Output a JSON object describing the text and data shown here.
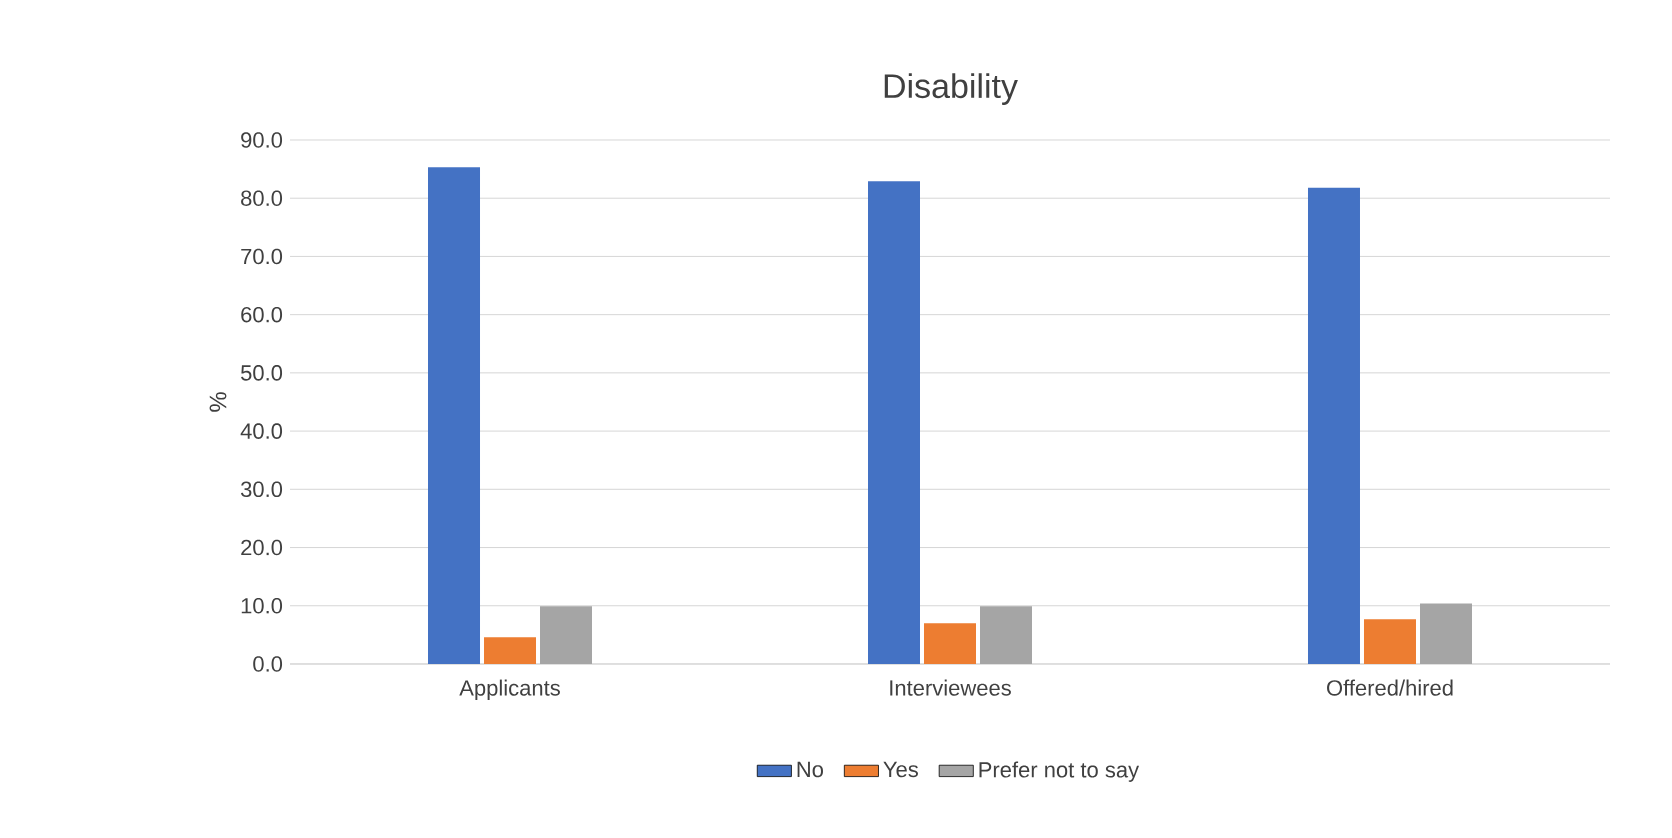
{
  "chart_data": {
    "type": "bar",
    "title": "Disability",
    "ylabel": "%",
    "categories": [
      "Applicants",
      "Interviewees",
      "Offered/hired"
    ],
    "series": [
      {
        "name": "No",
        "color": "#4472c4",
        "values": [
          85.3,
          82.9,
          81.8
        ]
      },
      {
        "name": "Yes",
        "color": "#ed7d31",
        "values": [
          4.6,
          7.0,
          7.7
        ]
      },
      {
        "name": "Prefer not to say",
        "color": "#a5a5a5",
        "values": [
          9.9,
          9.9,
          10.4
        ]
      }
    ],
    "ylim": [
      0,
      90
    ],
    "yticks": [
      {
        "value": 0,
        "label": "0.0"
      },
      {
        "value": 10,
        "label": "10.0"
      },
      {
        "value": 20,
        "label": "20.0"
      },
      {
        "value": 30,
        "label": "30.0"
      },
      {
        "value": 40,
        "label": "40.0"
      },
      {
        "value": 50,
        "label": "50.0"
      },
      {
        "value": 60,
        "label": "60.0"
      },
      {
        "value": 70,
        "label": "70.0"
      },
      {
        "value": 80,
        "label": "80.0"
      },
      {
        "value": 90,
        "label": "90.0"
      }
    ],
    "grid": "y",
    "legend": "bottom"
  }
}
